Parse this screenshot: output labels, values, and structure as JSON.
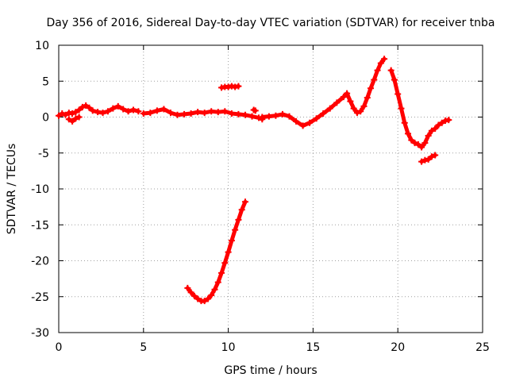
{
  "chart_data": {
    "type": "scatter",
    "title": "Day 356 of 2016, Sidereal Day-to-day VTEC variation (SDTVAR) for receiver tnba",
    "xlabel": "GPS time / hours",
    "ylabel": "SDTVAR / TECUs",
    "xlim": [
      0,
      25
    ],
    "ylim": [
      -30,
      10
    ],
    "xticks": [
      0,
      5,
      10,
      15,
      20,
      25
    ],
    "yticks": [
      -30,
      -25,
      -20,
      -15,
      -10,
      -5,
      0,
      5,
      10
    ],
    "grid": true,
    "marker": "plus",
    "series": [
      {
        "name": "sdtvar",
        "color": "#ff0000",
        "segments": [
          {
            "name": "track-main-early",
            "points": [
              [
                0.0,
                0.2
              ],
              [
                0.2,
                0.5
              ],
              [
                0.4,
                0.3
              ],
              [
                0.6,
                0.6
              ],
              [
                0.8,
                0.5
              ],
              [
                1.0,
                0.7
              ],
              [
                1.2,
                1.0
              ],
              [
                1.4,
                1.4
              ],
              [
                1.6,
                1.6
              ],
              [
                1.8,
                1.3
              ],
              [
                2.0,
                0.9
              ],
              [
                2.3,
                0.7
              ],
              [
                2.6,
                0.6
              ],
              [
                2.9,
                0.8
              ],
              [
                3.2,
                1.2
              ],
              [
                3.5,
                1.5
              ],
              [
                3.8,
                1.1
              ],
              [
                4.1,
                0.8
              ],
              [
                4.4,
                1.0
              ],
              [
                4.7,
                0.8
              ]
            ]
          },
          {
            "name": "track-low-dip",
            "points": [
              [
                0.6,
                -0.3
              ],
              [
                0.8,
                -0.6
              ],
              [
                1.0,
                -0.2
              ],
              [
                1.2,
                0.0
              ]
            ]
          },
          {
            "name": "track-main-mid",
            "points": [
              [
                5.0,
                0.5
              ],
              [
                5.4,
                0.6
              ],
              [
                5.8,
                0.9
              ],
              [
                6.2,
                1.1
              ],
              [
                6.6,
                0.6
              ],
              [
                7.0,
                0.3
              ],
              [
                7.4,
                0.4
              ],
              [
                7.8,
                0.5
              ],
              [
                8.2,
                0.7
              ],
              [
                8.6,
                0.6
              ],
              [
                9.0,
                0.8
              ],
              [
                9.4,
                0.7
              ],
              [
                9.8,
                0.8
              ],
              [
                10.2,
                0.5
              ],
              [
                10.6,
                0.4
              ],
              [
                11.0,
                0.3
              ],
              [
                11.4,
                0.1
              ],
              [
                11.8,
                -0.1
              ],
              [
                12.0,
                -0.3
              ]
            ]
          },
          {
            "name": "track-short-high",
            "points": [
              [
                9.6,
                4.1
              ],
              [
                9.8,
                4.2
              ],
              [
                10.0,
                4.2
              ],
              [
                10.2,
                4.3
              ],
              [
                10.4,
                4.2
              ],
              [
                10.6,
                4.3
              ]
            ]
          },
          {
            "name": "track-blip",
            "points": [
              [
                11.5,
                1.0
              ],
              [
                11.6,
                0.9
              ]
            ]
          },
          {
            "name": "track-main-late",
            "points": [
              [
                12.0,
                0.0
              ],
              [
                12.4,
                0.1
              ],
              [
                12.8,
                0.2
              ],
              [
                13.2,
                0.4
              ],
              [
                13.6,
                0.1
              ],
              [
                14.0,
                -0.6
              ],
              [
                14.4,
                -1.2
              ],
              [
                14.8,
                -0.8
              ],
              [
                15.2,
                -0.2
              ],
              [
                15.6,
                0.5
              ],
              [
                16.0,
                1.2
              ],
              [
                16.4,
                2.0
              ],
              [
                16.8,
                2.8
              ],
              [
                17.0,
                3.3
              ],
              [
                17.2,
                2.2
              ],
              [
                17.4,
                1.2
              ],
              [
                17.6,
                0.6
              ],
              [
                17.8,
                0.8
              ],
              [
                18.0,
                1.5
              ],
              [
                18.2,
                2.7
              ],
              [
                18.4,
                4.0
              ],
              [
                18.6,
                5.2
              ],
              [
                18.8,
                6.5
              ],
              [
                19.0,
                7.5
              ],
              [
                19.2,
                8.1
              ]
            ]
          },
          {
            "name": "track-descent",
            "points": [
              [
                19.6,
                6.5
              ],
              [
                19.8,
                5.2
              ],
              [
                20.0,
                3.2
              ],
              [
                20.2,
                1.2
              ],
              [
                20.4,
                -0.8
              ],
              [
                20.6,
                -2.3
              ],
              [
                20.8,
                -3.2
              ],
              [
                21.0,
                -3.6
              ],
              [
                21.2,
                -3.8
              ],
              [
                21.4,
                -4.2
              ],
              [
                21.6,
                -3.6
              ],
              [
                21.8,
                -2.6
              ],
              [
                22.0,
                -1.9
              ],
              [
                22.2,
                -1.6
              ],
              [
                22.4,
                -1.1
              ],
              [
                22.6,
                -0.8
              ],
              [
                22.8,
                -0.5
              ],
              [
                23.0,
                -0.4
              ]
            ]
          },
          {
            "name": "track-tail-low",
            "points": [
              [
                21.4,
                -6.2
              ],
              [
                21.6,
                -6.0
              ],
              [
                21.8,
                -5.9
              ],
              [
                22.0,
                -5.5
              ],
              [
                22.2,
                -5.3
              ]
            ]
          },
          {
            "name": "track-deep-arc",
            "points": [
              [
                7.6,
                -23.8
              ],
              [
                7.8,
                -24.4
              ],
              [
                8.0,
                -24.9
              ],
              [
                8.2,
                -25.3
              ],
              [
                8.4,
                -25.6
              ],
              [
                8.6,
                -25.6
              ],
              [
                8.8,
                -25.3
              ],
              [
                9.0,
                -24.8
              ],
              [
                9.2,
                -24.0
              ],
              [
                9.4,
                -23.0
              ],
              [
                9.6,
                -21.7
              ],
              [
                9.8,
                -20.3
              ],
              [
                10.0,
                -18.8
              ],
              [
                10.2,
                -17.2
              ],
              [
                10.4,
                -15.7
              ],
              [
                10.6,
                -14.3
              ],
              [
                10.8,
                -12.9
              ],
              [
                11.0,
                -11.8
              ]
            ]
          }
        ]
      }
    ]
  }
}
